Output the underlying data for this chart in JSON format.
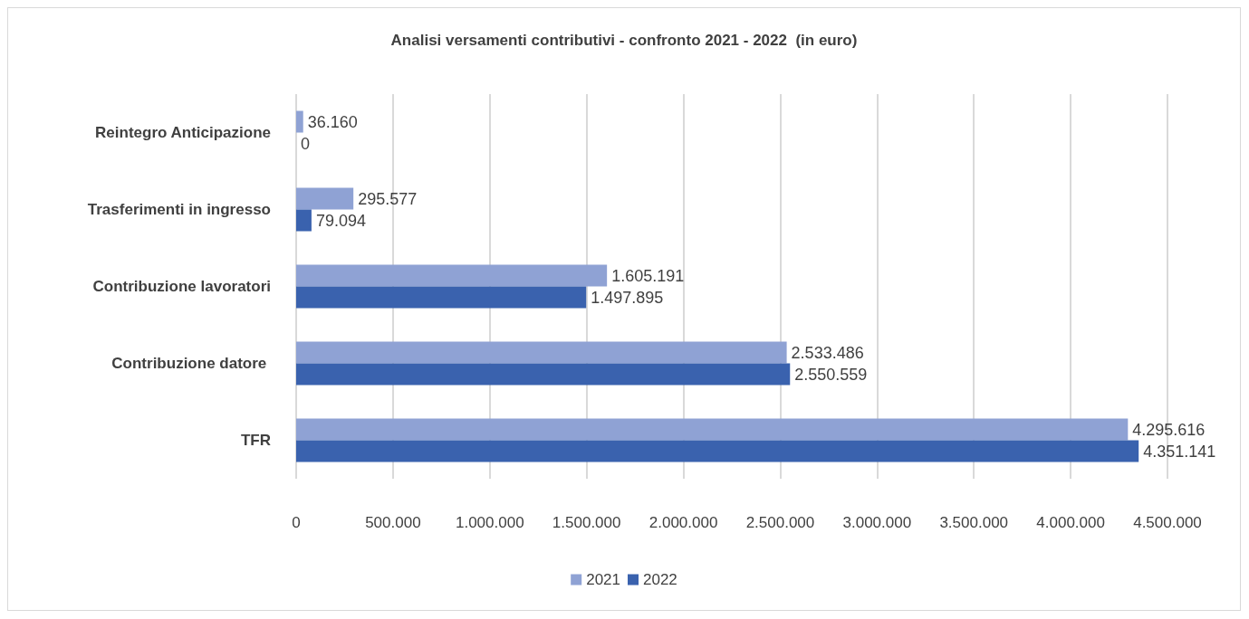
{
  "chart_data": {
    "type": "bar",
    "orientation": "horizontal",
    "title": "Analisi versamenti contributivi - confronto 2021 - 2022  (in euro)",
    "categories": [
      "Reintegro Anticipazione",
      "Trasferimenti in ingresso",
      "Contribuzione lavoratori",
      "Contribuzione datore ",
      "TFR"
    ],
    "series": [
      {
        "name": "2021",
        "color": "#8fa2d4",
        "values": [
          36160,
          295577,
          1605191,
          2533486,
          4295616
        ],
        "value_labels": [
          "36.160",
          "295.577",
          "1.605.191",
          "2.533.486",
          "4.295.616"
        ]
      },
      {
        "name": "2022",
        "color": "#3a62ae",
        "values": [
          0,
          79094,
          1497895,
          2550559,
          4351141
        ],
        "value_labels": [
          "0",
          "79.094",
          "1.497.895",
          "2.550.559",
          "4.351.141"
        ]
      }
    ],
    "xlim": [
      0,
      4500000
    ],
    "xticks": [
      0,
      {
        "value": 500000,
        "label": "500.000"
      },
      {
        "value": 1000000,
        "label": "1.000.000"
      },
      {
        "value": 1500000,
        "label": "1.500.000"
      },
      {
        "value": 2000000,
        "label": "2.000.000"
      },
      {
        "value": 2500000,
        "label": "2.500.000"
      },
      {
        "value": 3000000,
        "label": "3.000.000"
      },
      {
        "value": 3500000,
        "label": "3.500.000"
      },
      {
        "value": 4000000,
        "label": "4.000.000"
      },
      {
        "value": 4500000,
        "label": "4.500.000"
      }
    ],
    "grid": "x",
    "legend": "bottom"
  }
}
